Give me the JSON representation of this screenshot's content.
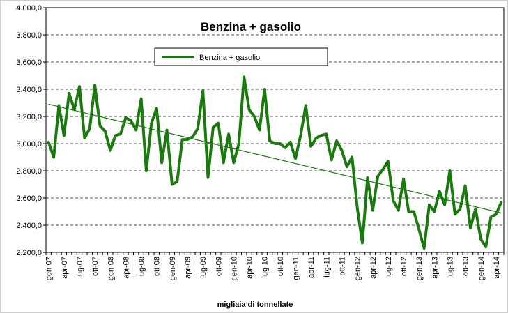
{
  "chart_data": {
    "type": "line",
    "title": "Benzina + gasolio",
    "xlabel": "migliaia di tonnellate",
    "ylabel": "",
    "ylim": [
      2200,
      4000
    ],
    "yticks": [
      "2.200,0",
      "2.400,0",
      "2.600,0",
      "2.800,0",
      "3.000,0",
      "3.200,0",
      "3.400,0",
      "3.600,0",
      "3.800,0",
      "4.000,0"
    ],
    "grid": "horizontal-dashed",
    "legend": "top-center",
    "colors": {
      "series": "#1a7a0e",
      "trend": "#1a7a0e"
    },
    "x_tick_labels": [
      "gen-07",
      "apr-07",
      "lug-07",
      "ott-07",
      "gen-08",
      "apr-08",
      "lug-08",
      "ott-08",
      "gen-09",
      "apr-09",
      "lug-09",
      "ott-09",
      "gen-10",
      "apr-10",
      "lug-10",
      "ott-10",
      "gen-11",
      "apr-11",
      "lug-11",
      "ott-11",
      "gen-12",
      "apr-12",
      "lug-12",
      "ott-12",
      "gen-13",
      "apr-13",
      "lug-13",
      "ott-13",
      "gen-14",
      "apr-14"
    ],
    "series": [
      {
        "name": "Benzina  + gasolio",
        "values": [
          3010,
          2900,
          3280,
          3060,
          3370,
          3250,
          3420,
          3040,
          3110,
          3430,
          3130,
          3090,
          2950,
          3060,
          3070,
          3190,
          3170,
          3100,
          3330,
          2800,
          3150,
          3260,
          2860,
          3100,
          2700,
          2720,
          3030,
          3030,
          3050,
          3110,
          3390,
          2750,
          3120,
          3150,
          2860,
          3070,
          2860,
          3000,
          3490,
          3250,
          3200,
          3100,
          3400,
          3020,
          3000,
          3000,
          2970,
          3010,
          2890,
          3060,
          3280,
          2980,
          3040,
          3060,
          3070,
          2880,
          3020,
          2950,
          2830,
          2900,
          2530,
          2270,
          2750,
          2510,
          2760,
          2810,
          2870,
          2580,
          2510,
          2740,
          2500,
          2500,
          2370,
          2230,
          2550,
          2500,
          2650,
          2550,
          2800,
          2480,
          2520,
          2690,
          2380,
          2520,
          2300,
          2240,
          2460,
          2480,
          2570
        ]
      }
    ],
    "trendline": {
      "start": 3290,
      "end": 2490
    }
  }
}
